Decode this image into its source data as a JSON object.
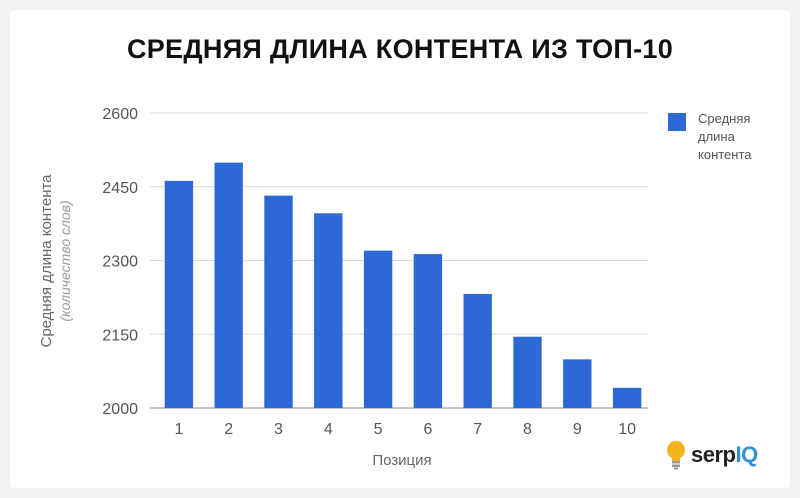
{
  "chart_data": {
    "type": "bar",
    "title": "СРЕДНЯЯ ДЛИНА КОНТЕНТА ИЗ ТОП-10",
    "xlabel": "Позиция",
    "ylabel": "Средняя длина контента",
    "ylabel_sub": "(количество слов)",
    "categories": [
      "1",
      "2",
      "3",
      "4",
      "5",
      "6",
      "7",
      "8",
      "9",
      "10"
    ],
    "series": [
      {
        "name": "Средняя длина контента",
        "values": [
          2462,
          2499,
          2432,
          2396,
          2320,
          2313,
          2232,
          2145,
          2099,
          2041
        ]
      }
    ],
    "ylim": [
      2000,
      2600
    ],
    "yticks": [
      2000,
      2150,
      2300,
      2450,
      2600
    ],
    "grid": true,
    "legend": "right",
    "bar_color": "#2c69d6"
  },
  "logo": {
    "part1": "serp",
    "part2": "IQ"
  }
}
